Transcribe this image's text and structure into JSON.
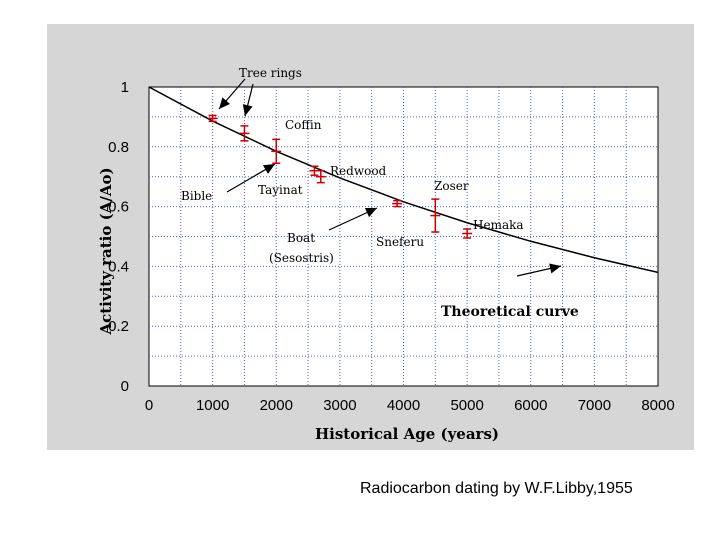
{
  "caption": "Radiocarbon dating by W.F.Libby,1955",
  "chart_data": {
    "type": "scatter",
    "xlabel": "Historical Age (years)",
    "ylabel": "Activity ratio (A/Ao)",
    "xlim": [
      0,
      8000
    ],
    "ylim": [
      0,
      1
    ],
    "x_ticks": [
      "0",
      "1000",
      "2000",
      "3000",
      "4000",
      "5000",
      "6000",
      "7000",
      "8000"
    ],
    "y_ticks": [
      "0",
      "0.2",
      "0.4",
      "0.6",
      "0.8",
      "1"
    ],
    "grid": true,
    "colors": {
      "panel": "#d6d6d6",
      "plot_bg": "#ffffff",
      "grid": "#4a60d0",
      "points": "#cc0000",
      "curve": "#000000"
    },
    "series": [
      {
        "name": "Theoretical curve",
        "kind": "line",
        "x": [
          0,
          1000,
          2000,
          3000,
          4000,
          5000,
          6000,
          7000,
          8000
        ],
        "y": [
          1.0,
          0.886,
          0.785,
          0.696,
          0.616,
          0.546,
          0.484,
          0.429,
          0.38
        ]
      },
      {
        "kind": "points_with_error_bars",
        "points": [
          {
            "x": 1000,
            "y": 0.895,
            "err": 0.01
          },
          {
            "x": 1500,
            "y": 0.845,
            "err": 0.025
          },
          {
            "x": 2000,
            "y": 0.785,
            "err": 0.04
          },
          {
            "x": 2600,
            "y": 0.72,
            "err": 0.015
          },
          {
            "x": 2700,
            "y": 0.7,
            "err": 0.02
          },
          {
            "x": 3900,
            "y": 0.61,
            "err": 0.01
          },
          {
            "x": 4500,
            "y": 0.57,
            "err": 0.055
          },
          {
            "x": 5000,
            "y": 0.51,
            "err": 0.015
          }
        ]
      }
    ],
    "annotations": [
      "Tree rings",
      "Coffin",
      "Bible",
      "Tayinat",
      "Redwood",
      "Zoser",
      "Boat",
      "(Sesostris)",
      "Sneferu",
      "Hemaka",
      "Theoretical curve"
    ]
  }
}
